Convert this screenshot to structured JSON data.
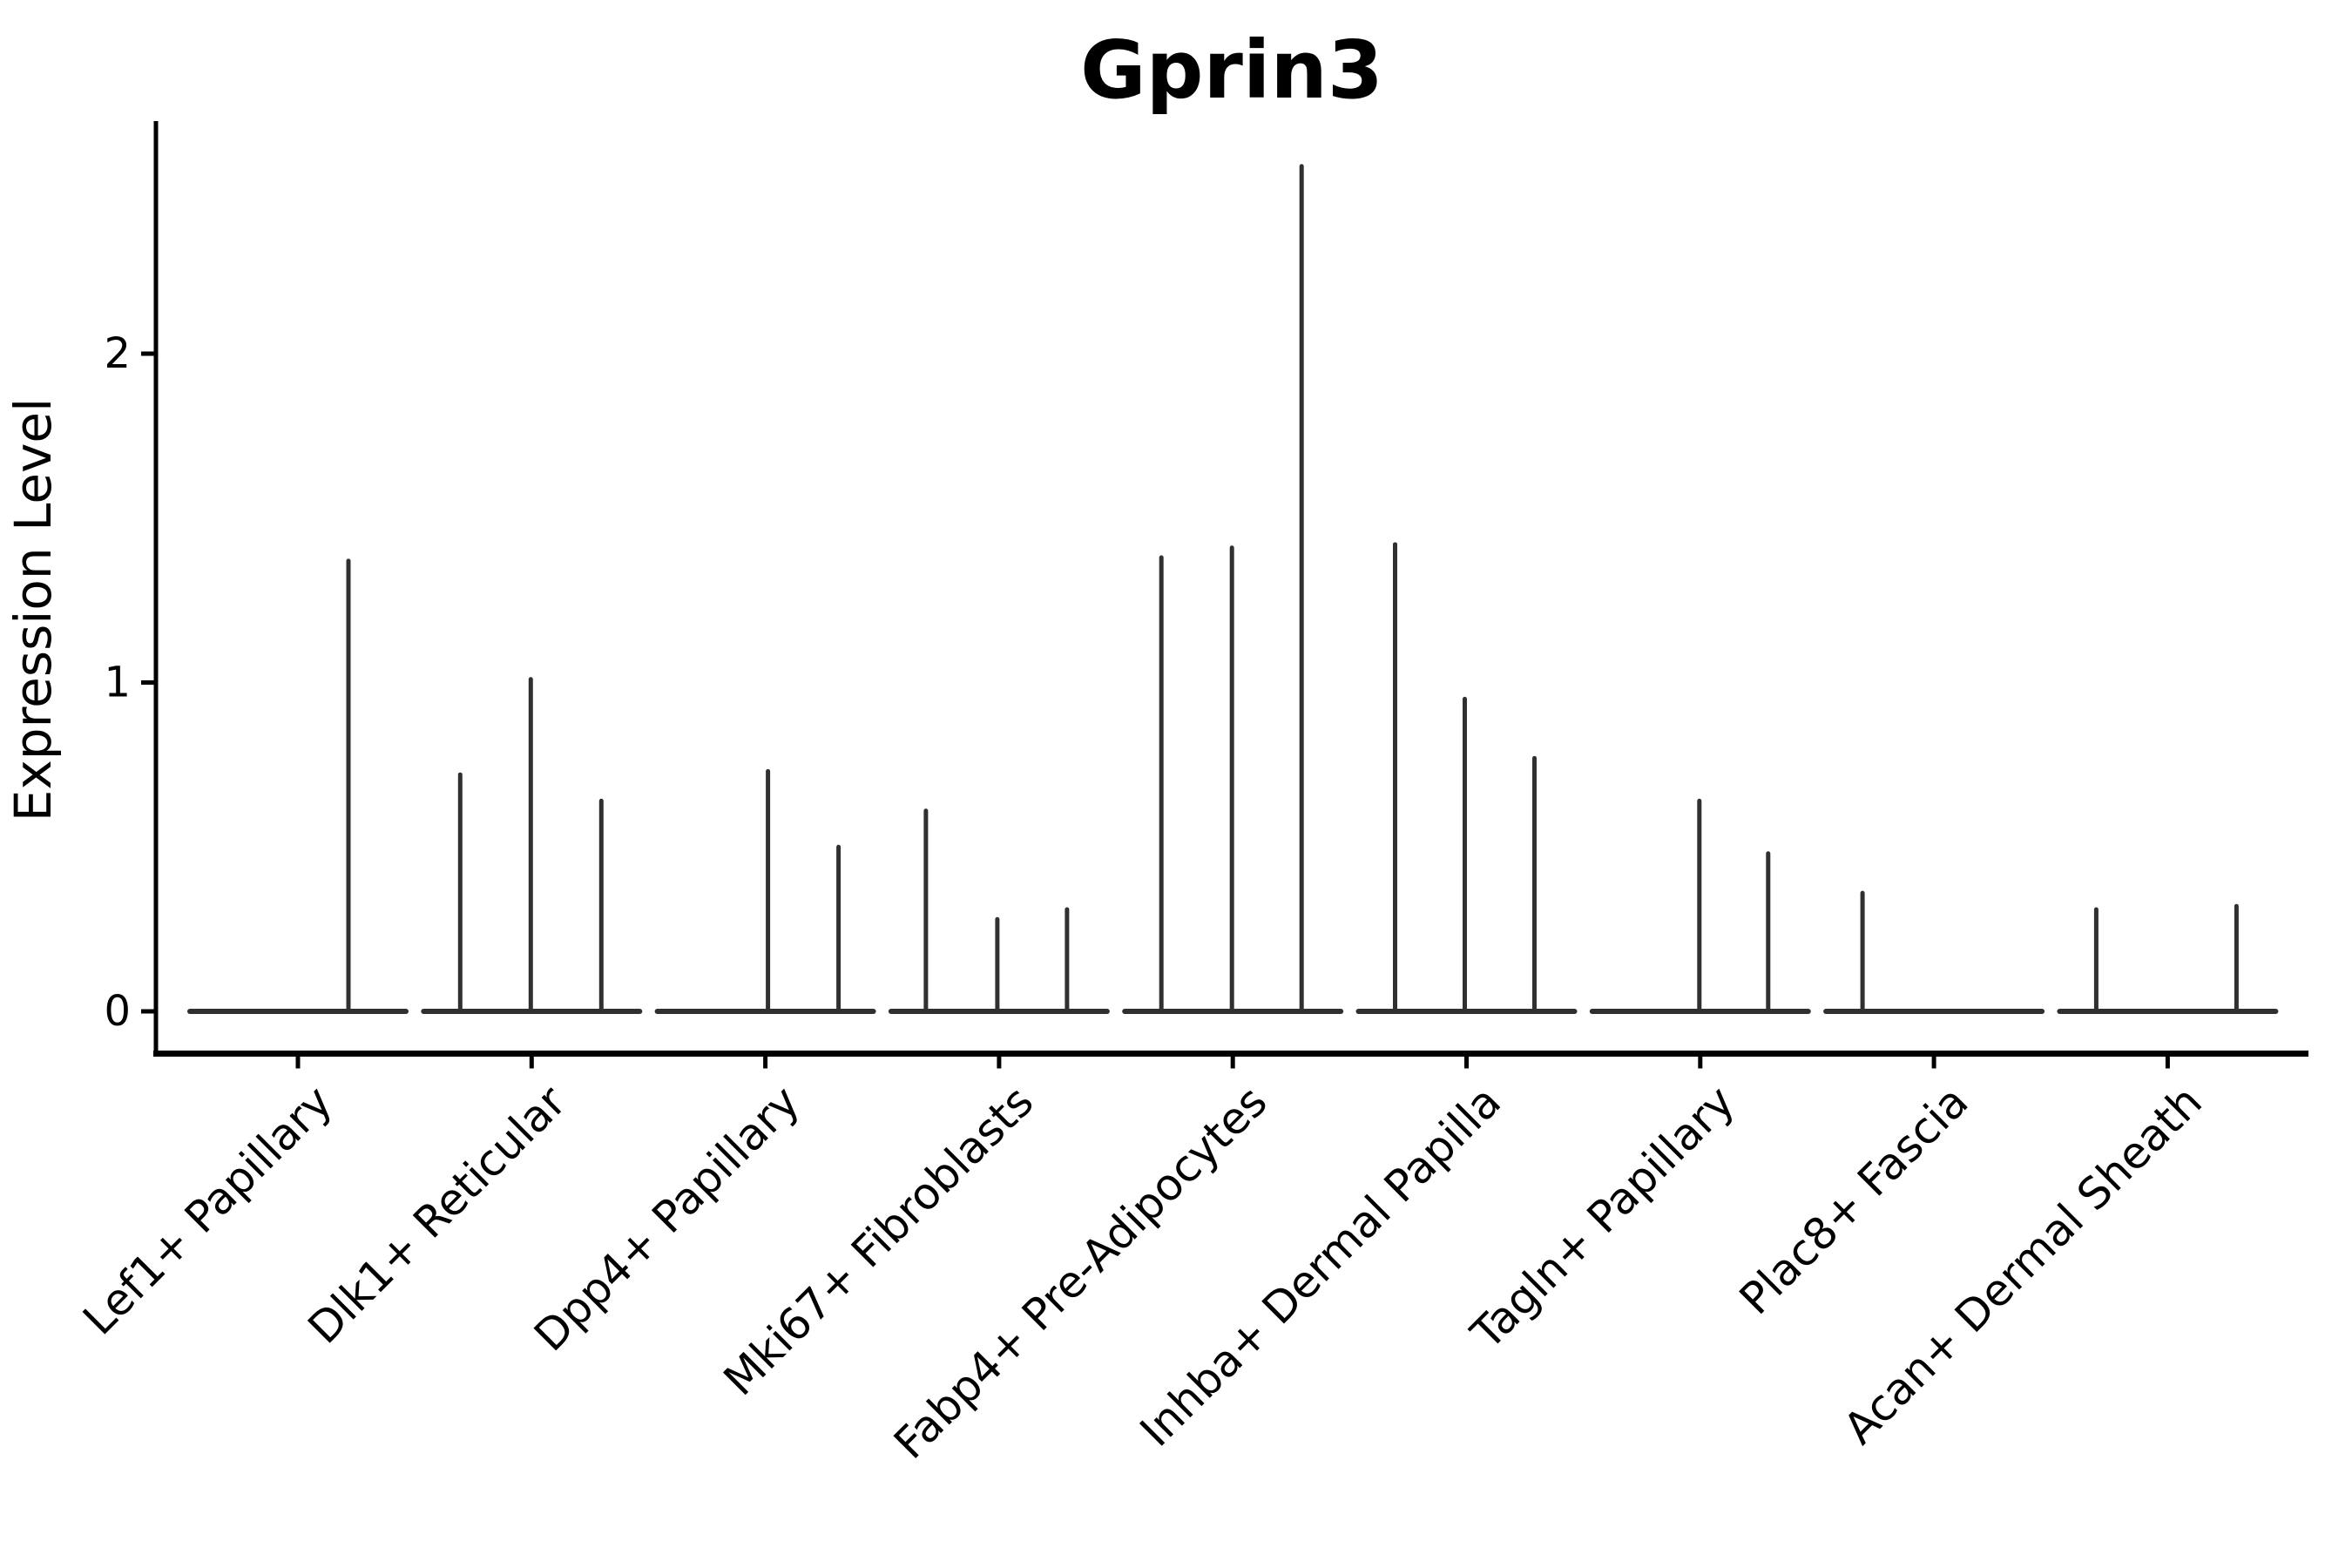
{
  "title": "Gprin3",
  "colors": {
    "violin": "#303030",
    "axis": "#000000",
    "text": "#000000",
    "background": "#ffffff"
  },
  "chart_data": {
    "type": "violin",
    "title": "Gprin3",
    "xlabel": "",
    "ylabel": "Expression Level",
    "ylim": [
      0,
      2.71
    ],
    "grid": false,
    "legend_position": "none",
    "x_tick_rotation_deg": 45,
    "violin_style": "collapsed thin violins: flat baseline at expression 0 with thin vertical spikes to each group's maximum",
    "y_ticks": [
      {
        "label": "0",
        "value": 0
      },
      {
        "label": "1",
        "value": 1
      },
      {
        "label": "2",
        "value": 2
      }
    ],
    "categories": [
      {
        "label": "Lef1+ Papillary",
        "spikes": [
          {
            "dx": 58,
            "value": 1.37
          }
        ]
      },
      {
        "label": "Dlk1+ Reticular",
        "spikes": [
          {
            "dx": -82,
            "value": 0.72
          },
          {
            "dx": -1,
            "value": 1.01
          },
          {
            "dx": 80,
            "value": 0.64
          }
        ]
      },
      {
        "label": "Dpp4+ Papillary",
        "spikes": [
          {
            "dx": 3,
            "value": 0.73
          },
          {
            "dx": 84,
            "value": 0.5
          }
        ]
      },
      {
        "label": "Mki67+ Fibroblasts",
        "spikes": [
          {
            "dx": -84,
            "value": 0.61
          },
          {
            "dx": -2,
            "value": 0.28
          },
          {
            "dx": 78,
            "value": 0.31
          }
        ]
      },
      {
        "label": "Fabp4+ Pre-Adipocytes",
        "spikes": [
          {
            "dx": -82,
            "value": 1.38
          },
          {
            "dx": -1,
            "value": 1.41
          },
          {
            "dx": 79,
            "value": 2.57
          }
        ]
      },
      {
        "label": "Inhba+ Dermal Papilla",
        "spikes": [
          {
            "dx": -82,
            "value": 1.42
          },
          {
            "dx": -2,
            "value": 0.95
          },
          {
            "dx": 78,
            "value": 0.77
          }
        ]
      },
      {
        "label": "Tagln+ Papillary",
        "spikes": [
          {
            "dx": -1,
            "value": 0.64
          },
          {
            "dx": 78,
            "value": 0.48
          }
        ]
      },
      {
        "label": "Plac8+ Fascia",
        "spikes": [
          {
            "dx": -82,
            "value": 0.36
          }
        ]
      },
      {
        "label": "Acan+ Dermal Sheath",
        "spikes": [
          {
            "dx": -82,
            "value": 0.31
          },
          {
            "dx": 79,
            "value": 0.32
          }
        ]
      }
    ]
  }
}
